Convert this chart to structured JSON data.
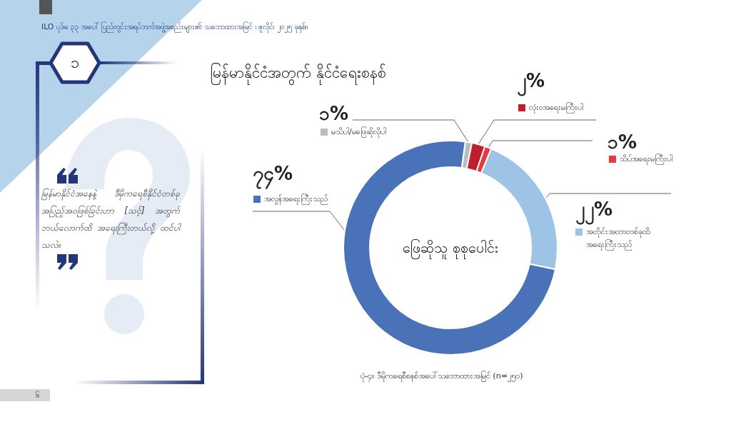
{
  "chart_data": {
    "type": "donut",
    "title": "မြန်မာနိုင်ငံအတွက် နိုင်ငံရေးစနစ်",
    "categories": [
      "မသိပါ/မဖြေဆိုလိုပါ",
      "လုံးဝအရေးမကြီးပါ",
      "သိပ်အရေးမကြီးပါ",
      "အတိုင်းအတာတစ်ခုထိ အရေးကြီးသည်",
      "အလွန်အရေးကြီးသည်"
    ],
    "values": [
      1,
      2,
      1,
      22,
      74
    ],
    "colors": [
      "#bdbdbd",
      "#bf1e2e",
      "#e63c3f",
      "#9dc3e6",
      "#4a72b8"
    ],
    "value_labels": [
      "၁%",
      "၂%",
      "၁%",
      "၂၂%",
      "၇၄%"
    ],
    "legend": "top",
    "annotations": [
      "ILO ပုဒ်မ ၃၃ အပေါ် ပြည်တွင်းအရပ်ဘက်အဖွဲ့အစည်းများ၏ သဘောထားအမြင် ၊ ဇူလိုင်၊ ၂၀၂၅ ခုနှစ်။",
      "၁",
      "မြန်မာနိုင်ငံအနေနဲ့ ဒီမိုကရေစီနိုင်ငံတစ်ခု အပြည့်အဝဖြစ်ခြင်းဟာ [သင့်] အတွက် ဘယ်လောက်ထိ အရေးကြီးတယ်လို့ ထင်ပါသလဲ။",
      "ဖြေဆိုသူ စုစုပေါင်း",
      "ပုံ-၄။ ဒီမိုကရေစီစနစ်အပေါ်သဘောထားအမြင် (n=၂၅၀)",
      "၆"
    ]
  }
}
